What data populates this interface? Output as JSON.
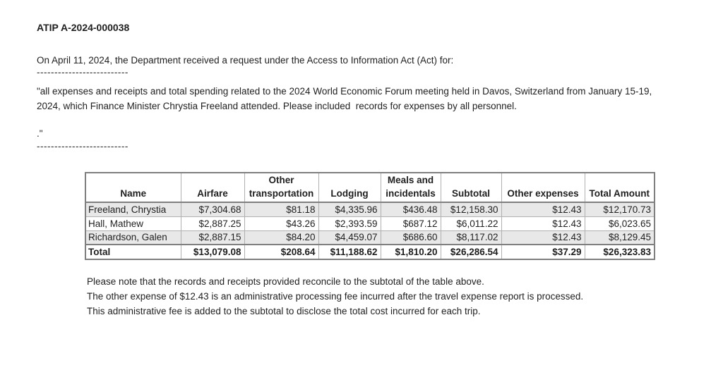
{
  "document": {
    "reference": "ATIP A-2024-000038",
    "intro": "On April 11, 2024, the Department received a request under the Access to Information Act (Act) for:",
    "divider_top": "--------------------------",
    "request_text": "\"all expenses and receipts and total spending related to the 2024 World Economic Forum meeting held in Davos, Switzerland from January 15-19, 2024, which Finance Minister Chrystia Freeland attended. Please included  records for expenses by all personnel.",
    "request_close": ".\"",
    "divider_bottom": "--------------------------"
  },
  "table": {
    "headers": [
      "Name",
      "Airfare",
      "Other transportation",
      "Lodging",
      "Meals and incidentals",
      "Subtotal",
      "Other expenses",
      "Total Amount"
    ],
    "rows": [
      [
        "Freeland, Chrystia",
        "$7,304.68",
        "$81.18",
        "$4,335.96",
        "$436.48",
        "$12,158.30",
        "$12.43",
        "$12,170.73"
      ],
      [
        "Hall, Mathew",
        "$2,887.25",
        "$43.26",
        "$2,393.59",
        "$687.12",
        "$6,011.22",
        "$12.43",
        "$6,023.65"
      ],
      [
        "Richardson, Galen",
        "$2,887.15",
        "$84.20",
        "$4,459.07",
        "$686.60",
        "$8,117.02",
        "$12.43",
        "$8,129.45"
      ]
    ],
    "total_row": [
      "Total",
      "$13,079.08",
      "$208.64",
      "$11,188.62",
      "$1,810.20",
      "$26,286.54",
      "$37.29",
      "$26,323.83"
    ]
  },
  "notes": [
    "Please note that the records and receipts provided reconcile to the subtotal of the table above.",
    "The other expense of $12.43 is an administrative processing fee incurred after the travel expense report is processed.",
    "This administrative fee is added to the subtotal to disclose the total cost incurred for each trip."
  ],
  "colors": {
    "row_stripe": "#e8e8e8",
    "border_major": "#7f7f7f",
    "border_minor": "#b0b0b0",
    "text": "#1f1f1f"
  }
}
